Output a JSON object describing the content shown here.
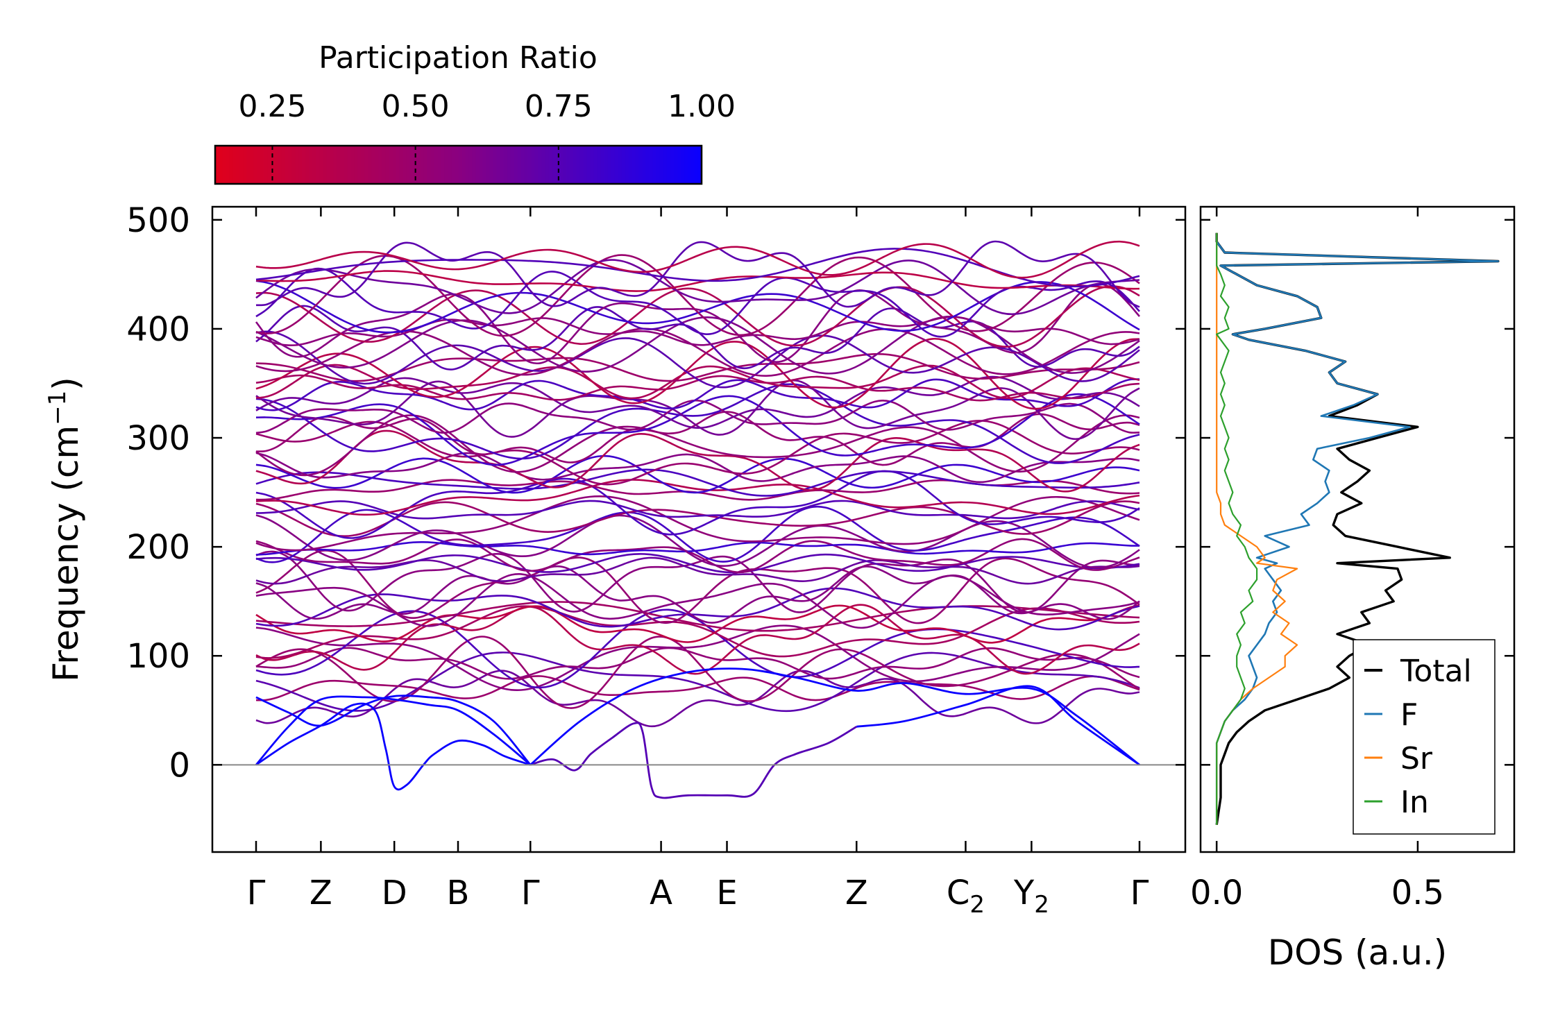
{
  "chart_data": [
    {
      "type": "band_structure",
      "ylabel": "Frequency (cm",
      "ylabel_sup": "−1",
      "ylabel_close": ")",
      "ylim": [
        -80,
        512
      ],
      "yticks": [
        0,
        100,
        200,
        300,
        400,
        500
      ],
      "zero_line": 0,
      "high_symmetry_points": [
        {
          "label": "Γ",
          "sub": "",
          "pos": 0
        },
        {
          "label": "Z",
          "sub": "",
          "pos": 0.6
        },
        {
          "label": "D",
          "sub": "",
          "pos": 1.28
        },
        {
          "label": "B",
          "sub": "",
          "pos": 1.87
        },
        {
          "label": "Γ",
          "sub": "",
          "pos": 2.54
        },
        {
          "label": "A",
          "sub": "",
          "pos": 3.75
        },
        {
          "label": "E",
          "sub": "",
          "pos": 4.36
        },
        {
          "label": "Z",
          "sub": "",
          "pos": 5.56
        },
        {
          "label": "C",
          "sub": "2",
          "pos": 6.57
        },
        {
          "label": "Y",
          "sub": "2",
          "pos": 7.18
        },
        {
          "label": "Γ",
          "sub": "",
          "pos": 8.18
        }
      ],
      "colorbar": {
        "title": "Participation Ratio",
        "range": [
          0.15,
          1.0
        ],
        "ticks": [
          0.25,
          0.5,
          0.75,
          1.0
        ],
        "tick_labels": [
          "0.25",
          "0.50",
          "0.75",
          "1.00"
        ],
        "low_color": "#e0001b",
        "mid_color": "#8a0080",
        "high_color": "#0a00ff"
      },
      "acoustic_branches": [
        {
          "x": [
            0,
            0.3,
            0.6,
            0.9,
            1.1,
            1.2,
            1.28,
            1.4,
            1.55,
            1.65,
            1.87,
            2.1,
            2.3,
            2.54
          ],
          "y": [
            0,
            20,
            36,
            55,
            50,
            15,
            -20,
            -18,
            0,
            10,
            22,
            18,
            8,
            0
          ],
          "pr": 1.0
        },
        {
          "x": [
            0,
            0.3,
            0.6,
            1.0,
            1.28,
            1.6,
            1.87,
            2.2,
            2.54
          ],
          "y": [
            0,
            35,
            60,
            62,
            60,
            55,
            50,
            28,
            0
          ],
          "pr": 1.0
        },
        {
          "x": [
            0,
            0.3,
            0.6,
            1.0,
            1.28,
            1.6,
            1.87,
            2.2,
            2.54
          ],
          "y": [
            62,
            48,
            36,
            55,
            63,
            62,
            58,
            40,
            0
          ],
          "pr": 1.0
        },
        {
          "x": [
            2.54,
            2.75,
            2.95,
            3.1,
            3.3,
            3.5,
            3.58,
            3.66,
            3.75,
            4.0,
            4.36,
            4.6,
            4.8,
            5.0,
            5.3,
            5.56
          ],
          "y": [
            0,
            5,
            -5,
            10,
            25,
            38,
            30,
            -20,
            -30,
            -28,
            -28,
            -27,
            0,
            10,
            20,
            35
          ],
          "pr": 0.75
        },
        {
          "x": [
            2.54,
            3.0,
            3.5,
            4.0,
            4.5,
            5.0,
            5.56,
            6.0,
            6.57,
            7.18,
            7.6,
            8.18
          ],
          "y": [
            0,
            40,
            70,
            85,
            88,
            80,
            68,
            75,
            65,
            70,
            45,
            0
          ],
          "pr": 1.0
        },
        {
          "x": [
            5.56,
            6.0,
            6.57,
            7.18,
            7.6,
            8.18
          ],
          "y": [
            35,
            40,
            55,
            72,
            40,
            0
          ],
          "pr": 1.0
        }
      ],
      "optical_band": {
        "min": 62,
        "max": 463,
        "count": 60
      }
    },
    {
      "type": "line",
      "xlabel": "DOS (a.u.)",
      "xlim": [
        -0.04,
        0.74
      ],
      "xticks": [
        0.0,
        0.5
      ],
      "xtick_labels": [
        "0.0",
        "0.5"
      ],
      "ylim": [
        -80,
        512
      ],
      "legend_position": "lower-right",
      "y": [
        -55,
        -30,
        -10,
        0,
        10,
        20,
        30,
        40,
        50,
        60,
        70,
        80,
        90,
        100,
        110,
        120,
        130,
        140,
        150,
        160,
        170,
        180,
        185,
        190,
        200,
        210,
        220,
        230,
        240,
        250,
        260,
        270,
        280,
        290,
        300,
        310,
        320,
        330,
        340,
        350,
        360,
        370,
        380,
        390,
        395,
        400,
        410,
        420,
        430,
        440,
        450,
        458,
        462,
        470,
        480,
        488
      ],
      "series": [
        {
          "name": "Total",
          "color": "#000000",
          "values": [
            0.0,
            0.01,
            0.01,
            0.01,
            0.02,
            0.03,
            0.05,
            0.08,
            0.12,
            0.2,
            0.28,
            0.33,
            0.3,
            0.33,
            0.38,
            0.3,
            0.38,
            0.36,
            0.44,
            0.42,
            0.46,
            0.45,
            0.3,
            0.58,
            0.45,
            0.32,
            0.29,
            0.3,
            0.36,
            0.31,
            0.35,
            0.38,
            0.33,
            0.3,
            0.4,
            0.5,
            0.28,
            0.35,
            0.4,
            0.3,
            0.28,
            0.32,
            0.22,
            0.08,
            0.04,
            0.12,
            0.26,
            0.25,
            0.2,
            0.1,
            0.05,
            0.01,
            0.7,
            0.02,
            0.0,
            0.0
          ]
        },
        {
          "name": "F",
          "color": "#1f77b4",
          "values": [
            0.0,
            0.0,
            0.0,
            0.0,
            0.0,
            0.0,
            0.01,
            0.02,
            0.04,
            0.07,
            0.09,
            0.1,
            0.09,
            0.08,
            0.1,
            0.12,
            0.13,
            0.15,
            0.14,
            0.16,
            0.14,
            0.12,
            0.15,
            0.1,
            0.18,
            0.12,
            0.23,
            0.21,
            0.25,
            0.28,
            0.27,
            0.28,
            0.24,
            0.25,
            0.38,
            0.48,
            0.26,
            0.34,
            0.4,
            0.3,
            0.28,
            0.32,
            0.22,
            0.08,
            0.04,
            0.12,
            0.26,
            0.25,
            0.2,
            0.1,
            0.05,
            0.01,
            0.7,
            0.02,
            0.0,
            0.0
          ]
        },
        {
          "name": "Sr",
          "color": "#ff7f0e",
          "values": [
            0.0,
            0.0,
            0.0,
            0.0,
            0.0,
            0.0,
            0.01,
            0.02,
            0.04,
            0.06,
            0.09,
            0.13,
            0.17,
            0.17,
            0.2,
            0.16,
            0.18,
            0.14,
            0.17,
            0.14,
            0.15,
            0.2,
            0.1,
            0.12,
            0.1,
            0.06,
            0.02,
            0.01,
            0.01,
            0.0,
            0.0,
            0.0,
            0.0,
            0.0,
            0.0,
            0.0,
            0.0,
            0.0,
            0.0,
            0.0,
            0.0,
            0.0,
            0.0,
            0.0,
            0.0,
            0.0,
            0.0,
            0.0,
            0.0,
            0.0,
            0.0,
            0.0,
            0.0,
            0.0,
            0.0,
            0.0
          ]
        },
        {
          "name": "In",
          "color": "#2ca02c",
          "values": [
            0.0,
            0.0,
            0.0,
            0.0,
            0.0,
            0.0,
            0.01,
            0.02,
            0.04,
            0.06,
            0.07,
            0.06,
            0.05,
            0.05,
            0.06,
            0.05,
            0.07,
            0.06,
            0.09,
            0.08,
            0.1,
            0.1,
            0.09,
            0.08,
            0.07,
            0.05,
            0.06,
            0.04,
            0.03,
            0.04,
            0.03,
            0.02,
            0.03,
            0.02,
            0.03,
            0.02,
            0.01,
            0.02,
            0.01,
            0.02,
            0.01,
            0.02,
            0.03,
            0.01,
            0.0,
            0.03,
            0.02,
            0.03,
            0.01,
            0.02,
            0.01,
            0.0,
            0.0,
            0.0,
            0.0,
            0.0
          ]
        }
      ]
    }
  ]
}
